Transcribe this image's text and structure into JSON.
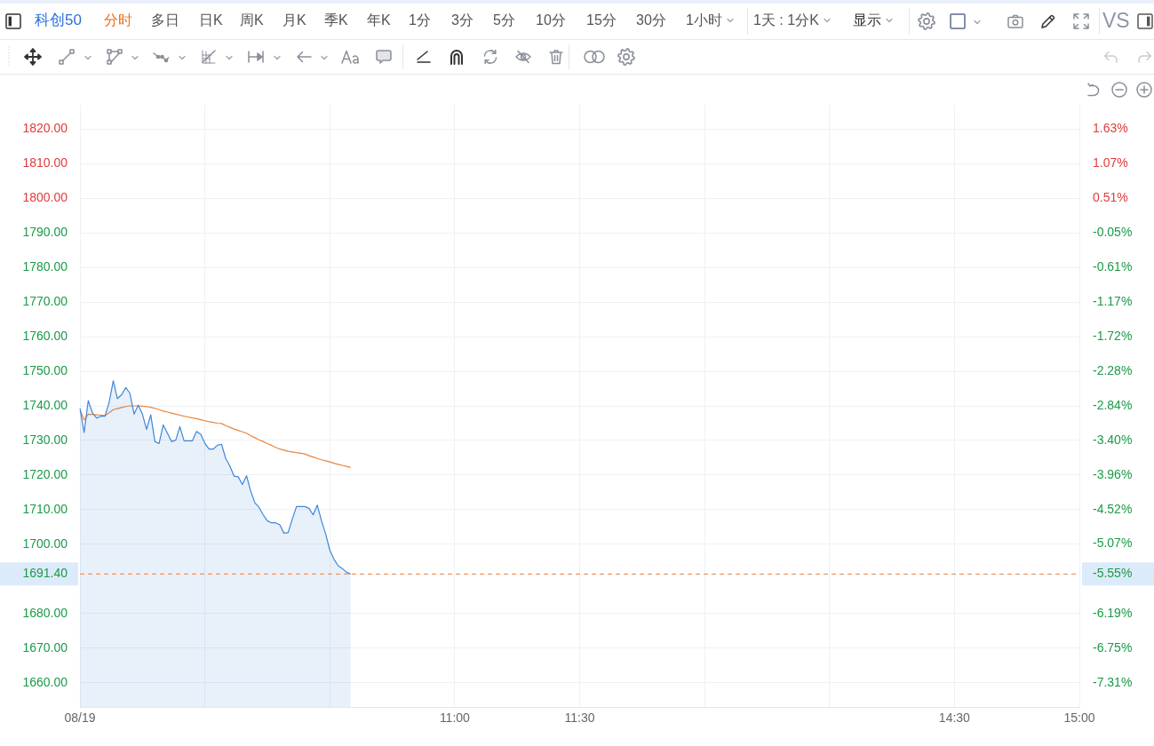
{
  "chart_data": {
    "type": "area",
    "title": "科创50",
    "annotations": [
      "分时",
      "多日",
      "日K",
      "周K",
      "月K",
      "季K",
      "年K",
      "1分",
      "3分",
      "5分",
      "10分",
      "15分",
      "30分",
      "1小时",
      "1天 : 1分K",
      "显示",
      "VS"
    ],
    "categories": [
      "08/19",
      null,
      null,
      null,
      null,
      null,
      null,
      null,
      null,
      null,
      null,
      null,
      null,
      null,
      null,
      null,
      null,
      null,
      null,
      null,
      null,
      null,
      null,
      null,
      null,
      null,
      null,
      null,
      null,
      null,
      null,
      null,
      null,
      null,
      null,
      null,
      null,
      null,
      null,
      null,
      null,
      null,
      null,
      null,
      null,
      null,
      null,
      null,
      null,
      null,
      null,
      null,
      null,
      null,
      null,
      null,
      null,
      null,
      null,
      null,
      null,
      null,
      null,
      null,
      null,
      null,
      null,
      null,
      null,
      null,
      null,
      null,
      null,
      null,
      null,
      null,
      null,
      null,
      null,
      null,
      null,
      null,
      null,
      null,
      null,
      null,
      null,
      null,
      null,
      null,
      "11:00",
      null,
      null,
      null,
      null,
      null,
      null,
      null,
      null,
      null,
      null,
      null,
      null,
      null,
      null,
      null,
      null,
      null,
      null,
      null,
      null,
      null,
      null,
      null,
      null,
      null,
      null,
      null,
      null,
      null,
      "11:30",
      null,
      null,
      null,
      null,
      null,
      null,
      null,
      null,
      null,
      null,
      null,
      null,
      null,
      null,
      null,
      null,
      null,
      null,
      null,
      null,
      null,
      null,
      null,
      null,
      null,
      null,
      null,
      null,
      null,
      null,
      null,
      null,
      null,
      null,
      null,
      null,
      null,
      null,
      null,
      null,
      null,
      null,
      null,
      null,
      null,
      null,
      null,
      null,
      null,
      null,
      null,
      null,
      null,
      null,
      null,
      null,
      null,
      null,
      null,
      null,
      null,
      null,
      null,
      null,
      null,
      null,
      null,
      null,
      null,
      null,
      null,
      null,
      null,
      null,
      null,
      null,
      null,
      null,
      null,
      null,
      null,
      null,
      null,
      null,
      null,
      null,
      null,
      null,
      null,
      "14:30",
      null,
      null,
      null,
      null,
      null,
      null,
      null,
      null,
      null,
      null,
      null,
      null,
      null,
      null,
      null,
      null,
      null,
      null,
      null,
      null,
      null,
      null,
      null,
      null,
      null,
      null,
      null,
      null,
      null,
      "15:00"
    ],
    "series": [
      {
        "color": "#3f86d8",
        "values": [
          1739.3,
          1732.3,
          1741.5,
          1738.0,
          1736.5,
          1737.0,
          1737.0,
          1741.0,
          1747.2,
          1742.1,
          1743.2,
          1745.3,
          1743.6,
          1737.6,
          1740.2,
          1737.6,
          1733.2,
          1737.4,
          1729.7,
          1729.1,
          1734.5,
          1732.1,
          1729.7,
          1730.1,
          1734.0,
          1729.9,
          1729.9,
          1729.9,
          1732.6,
          1731.8,
          1729.2,
          1727.5,
          1727.5,
          1728.6,
          1728.9,
          1724.8,
          1722.6,
          1719.7,
          1719.5,
          1717.3,
          1719.8,
          1715.4,
          1712.0,
          1710.7,
          1708.5,
          1706.8,
          1706.2,
          1706.2,
          1705.6,
          1703.2,
          1703.4,
          1707.3,
          1710.9,
          1710.9,
          1710.9,
          1710.4,
          1708.5,
          1711.3,
          1706.8,
          1703.0,
          1698.3,
          1695.7,
          1693.8,
          1693.0,
          1691.9,
          1691.4,
          null,
          null,
          null,
          null,
          null,
          null,
          null,
          null,
          null,
          null,
          null,
          null,
          null,
          null,
          null,
          null,
          null,
          null,
          null,
          null,
          null,
          null,
          null,
          null,
          null,
          null,
          null,
          null,
          null,
          null,
          null,
          null,
          null,
          null,
          null,
          null,
          null,
          null,
          null,
          null,
          null,
          null,
          null,
          null,
          null,
          null,
          null,
          null,
          null,
          null,
          null,
          null,
          null,
          null,
          null,
          null,
          null,
          null,
          null,
          null,
          null,
          null,
          null,
          null,
          null,
          null,
          null,
          null,
          null,
          null,
          null,
          null,
          null,
          null,
          null,
          null,
          null,
          null,
          null,
          null,
          null,
          null,
          null,
          null,
          null,
          null,
          null,
          null,
          null,
          null,
          null,
          null,
          null,
          null,
          null,
          null,
          null,
          null,
          null,
          null,
          null,
          null,
          null,
          null,
          null,
          null,
          null,
          null,
          null,
          null,
          null,
          null,
          null,
          null,
          null,
          null,
          null,
          null,
          null,
          null,
          null,
          null,
          null,
          null,
          null,
          null,
          null,
          null,
          null,
          null,
          null,
          null,
          null,
          null,
          null,
          null,
          null,
          null,
          null,
          null,
          null,
          null,
          null,
          null,
          null,
          null,
          null,
          null,
          null,
          null,
          null,
          null,
          null,
          null,
          null,
          null,
          null,
          null,
          null,
          null,
          null,
          null,
          null,
          null,
          null,
          null,
          null,
          null,
          null,
          null,
          null,
          null,
          null,
          null,
          null
        ]
      },
      {
        "type": "line",
        "color": "#e8853d",
        "values": [
          1738.9,
          1735.9,
          1737.6,
          1737.5,
          1737.4,
          1737.3,
          1737.2,
          1738.0,
          1738.9,
          1739.2,
          1739.5,
          1739.8,
          1740.0,
          1740.0,
          1740.0,
          1739.9,
          1739.8,
          1739.6,
          1739.3,
          1738.9,
          1738.5,
          1738.2,
          1737.9,
          1737.6,
          1737.3,
          1737.0,
          1736.8,
          1736.5,
          1736.3,
          1736.0,
          1735.7,
          1735.4,
          1735.2,
          1735.0,
          1734.9,
          1734.3,
          1733.8,
          1733.3,
          1732.9,
          1732.5,
          1732.1,
          1731.4,
          1730.8,
          1730.2,
          1729.7,
          1729.1,
          1728.6,
          1728.0,
          1727.5,
          1727.2,
          1726.9,
          1726.7,
          1726.5,
          1726.3,
          1726.1,
          1725.6,
          1725.2,
          1724.8,
          1724.4,
          1724.1,
          1723.8,
          1723.4,
          1723.1,
          1722.8,
          1722.5,
          1722.2,
          null,
          null,
          null,
          null,
          null,
          null,
          null,
          null,
          null,
          null,
          null,
          null,
          null,
          null,
          null,
          null,
          null,
          null,
          null,
          null,
          null,
          null,
          null,
          null,
          null,
          null,
          null,
          null,
          null,
          null,
          null,
          null,
          null,
          null,
          null,
          null,
          null,
          null,
          null,
          null,
          null,
          null,
          null,
          null,
          null,
          null,
          null,
          null,
          null,
          null,
          null,
          null,
          null,
          null,
          null,
          null,
          null,
          null,
          null,
          null,
          null,
          null,
          null,
          null,
          null,
          null,
          null,
          null,
          null,
          null,
          null,
          null,
          null,
          null,
          null,
          null,
          null,
          null,
          null,
          null,
          null,
          null,
          null,
          null,
          null,
          null,
          null,
          null,
          null,
          null,
          null,
          null,
          null,
          null,
          null,
          null,
          null,
          null,
          null,
          null,
          null,
          null,
          null,
          null,
          null,
          null,
          null,
          null,
          null,
          null,
          null,
          null,
          null,
          null,
          null,
          null,
          null,
          null,
          null,
          null,
          null,
          null,
          null,
          null,
          null,
          null,
          null,
          null,
          null,
          null,
          null,
          null,
          null,
          null,
          null,
          null,
          null,
          null,
          null,
          null,
          null,
          null,
          null,
          null,
          null,
          null,
          null,
          null,
          null,
          null,
          null,
          null,
          null,
          null,
          null,
          null,
          null,
          null,
          null,
          null,
          null,
          null,
          null,
          null,
          null,
          null,
          null,
          null,
          null,
          null,
          null,
          null,
          null,
          null,
          null
        ]
      }
    ],
    "ylim": [
      1653,
      1827
    ],
    "yticks": [
      {
        "value": 1820,
        "label": "1820.00"
      },
      {
        "value": 1810,
        "label": "1810.00"
      },
      {
        "value": 1800,
        "label": "1800.00"
      },
      {
        "value": 1790,
        "label": "1790.00"
      },
      {
        "value": 1780,
        "label": "1780.00"
      },
      {
        "value": 1770,
        "label": "1770.00"
      },
      {
        "value": 1760,
        "label": "1760.00"
      },
      {
        "value": 1750,
        "label": "1750.00"
      },
      {
        "value": 1740,
        "label": "1740.00"
      },
      {
        "value": 1730,
        "label": "1730.00"
      },
      {
        "value": 1720,
        "label": "1720.00"
      },
      {
        "value": 1710,
        "label": "1710.00"
      },
      {
        "value": 1700,
        "label": "1700.00"
      },
      {
        "value": 1680,
        "label": "1680.00"
      },
      {
        "value": 1670,
        "label": "1670.00"
      },
      {
        "value": 1660,
        "label": "1660.00"
      }
    ],
    "y2lim": [
      -7.7,
      2.02
    ],
    "y2ticks": [
      {
        "value": 1.63,
        "label": "1.63%"
      },
      {
        "value": 1.07,
        "label": "1.07%"
      },
      {
        "value": 0.51,
        "label": "0.51%"
      },
      {
        "value": -0.05,
        "label": "-0.05%"
      },
      {
        "value": -0.61,
        "label": "-0.61%"
      },
      {
        "value": -1.17,
        "label": "-1.17%"
      },
      {
        "value": -1.72,
        "label": "-1.72%"
      },
      {
        "value": -2.28,
        "label": "-2.28%"
      },
      {
        "value": -2.84,
        "label": "-2.84%"
      },
      {
        "value": -3.4,
        "label": "-3.40%"
      },
      {
        "value": -3.96,
        "label": "-3.96%"
      },
      {
        "value": -4.52,
        "label": "-4.52%"
      },
      {
        "value": -5.07,
        "label": "-5.07%"
      },
      {
        "value": -5.55,
        "label": "-5.55%"
      },
      {
        "value": -6.19,
        "label": "-6.19%"
      },
      {
        "value": -6.75,
        "label": "-6.75%"
      },
      {
        "value": -7.31,
        "label": "-7.31%"
      }
    ],
    "grid": true,
    "ref_lines": [
      {
        "axis": "y",
        "value": 1691.4,
        "label": "1691.40",
        "color": "#e8853d",
        "line_style": "dashed"
      }
    ]
  }
}
